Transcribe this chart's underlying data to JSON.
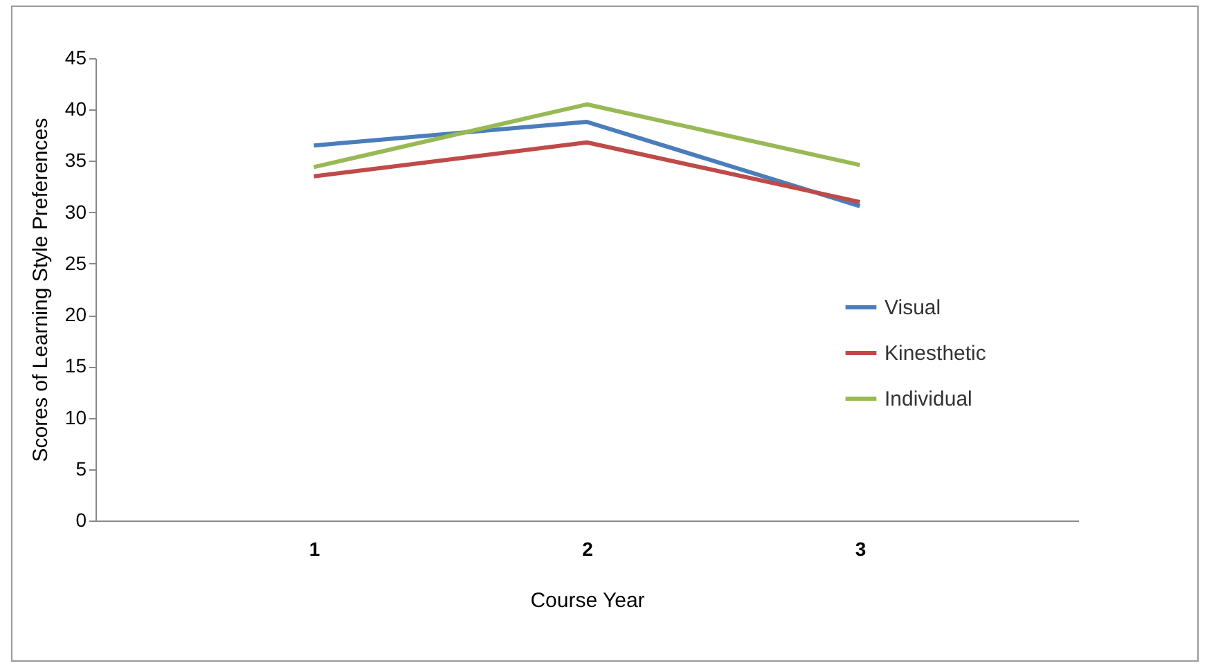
{
  "chart_data": {
    "type": "line",
    "xlabel": "Course Year",
    "ylabel": "Scores of Learning Style Preferences",
    "categories": [
      "1",
      "2",
      "3"
    ],
    "series": [
      {
        "name": "Visual",
        "color": "#4a7ebb",
        "values": [
          36.5,
          38.8,
          30.6
        ]
      },
      {
        "name": "Kinesthetic",
        "color": "#be4b48",
        "values": [
          33.5,
          36.8,
          31.0
        ]
      },
      {
        "name": "Individual",
        "color": "#98b954",
        "values": [
          34.4,
          40.5,
          34.6
        ]
      }
    ],
    "ylim": [
      0,
      45
    ],
    "yticks": [
      0,
      5,
      10,
      15,
      20,
      25,
      30,
      35,
      40,
      45
    ],
    "grid": false,
    "legend": "right",
    "marker": "none",
    "line_style": "solid"
  }
}
